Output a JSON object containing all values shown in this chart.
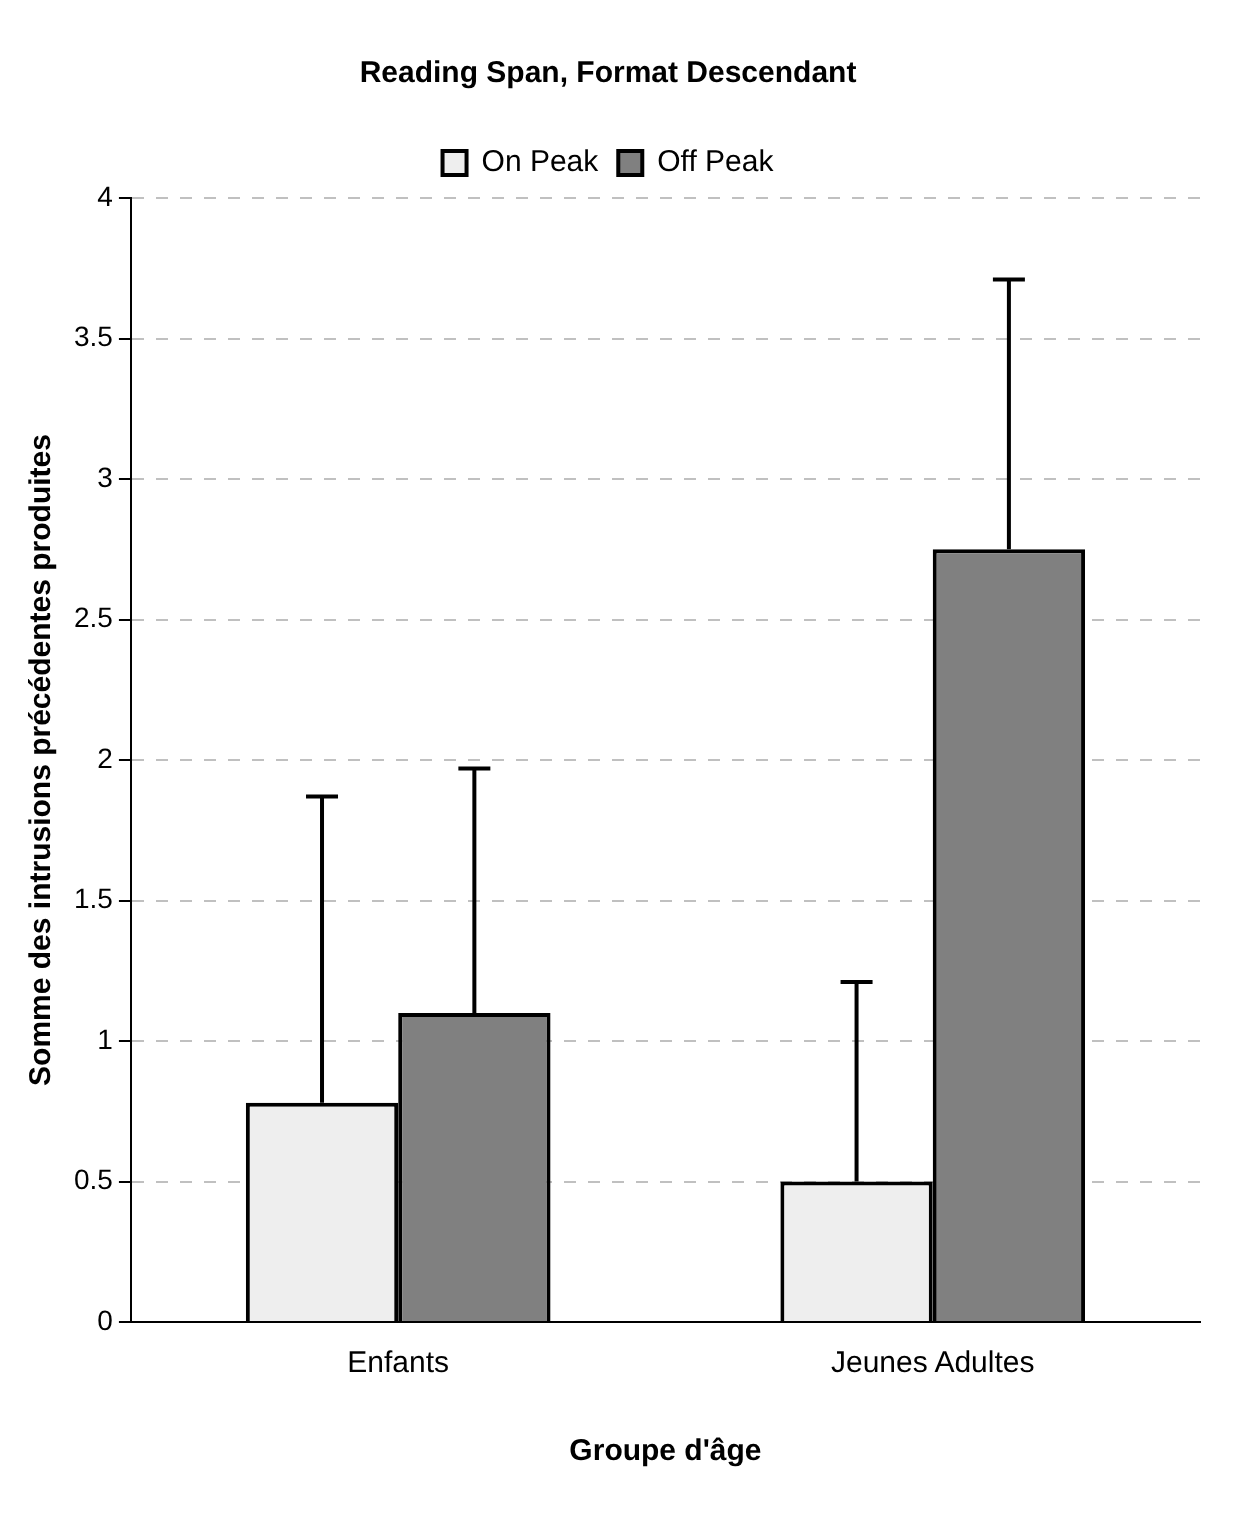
{
  "chart_data": {
    "type": "bar",
    "title": "Reading Span, Format Descendant",
    "xlabel": "Groupe d'âge",
    "ylabel": "Somme des intrusions précédentes produites",
    "categories": [
      "Enfants",
      "Jeunes Adultes"
    ],
    "series": [
      {
        "name": "On Peak",
        "color": "#eeeeee",
        "values": [
          0.78,
          0.5
        ],
        "errors": [
          [
            0.78,
            1.87
          ],
          [
            0.5,
            1.21
          ]
        ]
      },
      {
        "name": "Off Peak",
        "color": "#808080",
        "values": [
          1.1,
          2.75
        ],
        "errors": [
          [
            1.1,
            1.97
          ],
          [
            2.75,
            3.71
          ]
        ]
      }
    ],
    "ylim": [
      0,
      4
    ],
    "yticks": [
      0,
      0.5,
      1,
      1.5,
      2,
      2.5,
      3,
      3.5,
      4
    ],
    "grid": "y",
    "legend": "top"
  }
}
